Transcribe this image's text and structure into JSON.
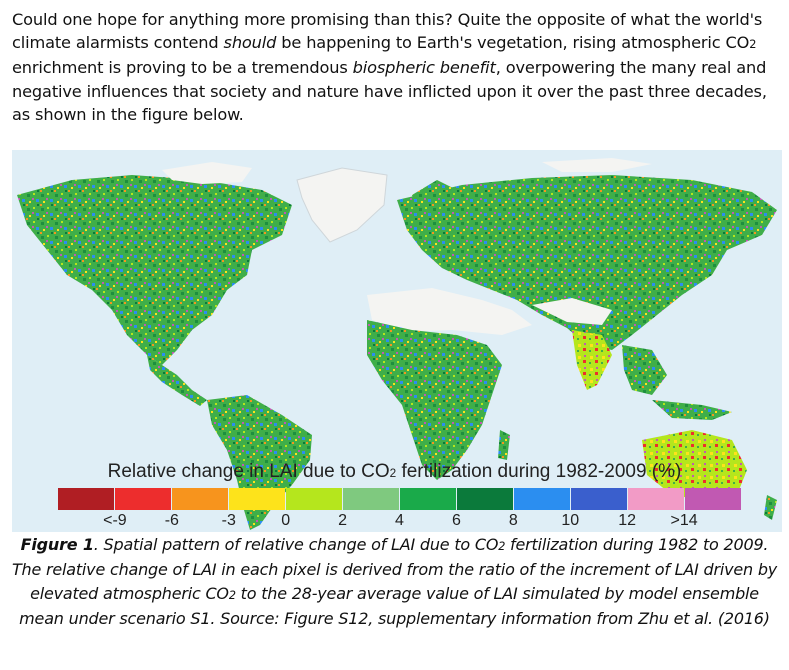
{
  "intro": {
    "p1": "Could one hope for anything more promising than this? Quite the opposite of what the world's climate alarmists contend ",
    "em1": "should",
    "p2": " be happening to Earth's vegetation, rising atmospheric CO",
    "sub1": "2",
    "p3": " enrichment is proving to be a tremendous ",
    "em2": "biospheric benefit",
    "p4": ", overpowering the many real and negative influences that society and nature have inflicted upon it over the past three decades, as shown in the figure below."
  },
  "legend": {
    "title_a": "Relative change in LAI due to CO",
    "title_sub": "2",
    "title_b": " fertilization during 1982-2009 (%)",
    "colors": [
      "#b01e23",
      "#ed2d2d",
      "#f7941d",
      "#fde31b",
      "#b5e61d",
      "#7fc97f",
      "#1aaa4a",
      "#0b7a3b",
      "#2b8ef0",
      "#3a5fcd",
      "#f29bc6",
      "#c159b2"
    ],
    "ticks": [
      "<-9",
      "-6",
      "-3",
      "0",
      "2",
      "4",
      "6",
      "8",
      "10",
      "12",
      ">14"
    ]
  },
  "caption": {
    "label": "Figure 1",
    "t1": ". Spatial pattern of relative change of LAI due to CO",
    "sub": "2",
    "t2": " fertilization during 1982 to 2009. The relative change of LAI in each pixel is derived from the ratio of the increment of LAI driven by elevated atmospheric CO",
    "sub2": "2",
    "t3": " to the 28-year average value of LAI simulated by model ensemble mean under scenario S1. Source: Figure S12, supplementary information from Zhu et al. (2016)"
  },
  "map": {
    "ocean_color": "#dfeef6",
    "land_color": "#3fae49",
    "desert_color": "#f4f4f2"
  }
}
